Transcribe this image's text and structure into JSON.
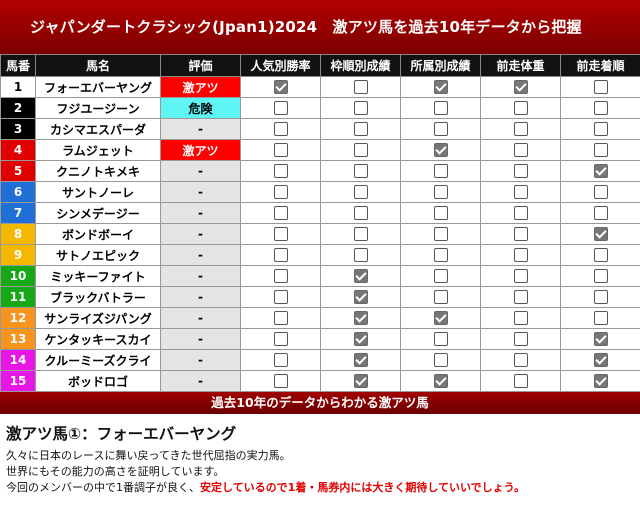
{
  "title": "ジャパンダートクラシック(Jpan1)2024　激アツ馬を過去10年データから把握",
  "columns": [
    "馬番",
    "馬名",
    "評価",
    "人気別勝率",
    "枠順別成績",
    "所属別成績",
    "前走体重",
    "前走着順"
  ],
  "rows": [
    {
      "num": "1",
      "name": "フォーエバーヤング",
      "rating": "激アツ",
      "rstyle": "hot",
      "numBg": "#ffffff",
      "numFg": "#000000",
      "checks": [
        true,
        false,
        true,
        true,
        false
      ]
    },
    {
      "num": "2",
      "name": "フジユージーン",
      "rating": "危険",
      "rstyle": "danger",
      "numBg": "#000000",
      "numFg": "#ffffff",
      "checks": [
        false,
        false,
        false,
        false,
        false
      ]
    },
    {
      "num": "3",
      "name": "カシマエスパーダ",
      "rating": "-",
      "rstyle": "",
      "numBg": "#000000",
      "numFg": "#ffffff",
      "checks": [
        false,
        false,
        false,
        false,
        false
      ]
    },
    {
      "num": "4",
      "name": "ラムジェット",
      "rating": "激アツ",
      "rstyle": "hot",
      "numBg": "#e00000",
      "numFg": "#ffffff",
      "checks": [
        false,
        false,
        true,
        false,
        false
      ]
    },
    {
      "num": "5",
      "name": "クニノトキメキ",
      "rating": "-",
      "rstyle": "",
      "numBg": "#e00000",
      "numFg": "#ffffff",
      "checks": [
        false,
        false,
        false,
        false,
        true
      ]
    },
    {
      "num": "6",
      "name": "サントノーレ",
      "rating": "-",
      "rstyle": "",
      "numBg": "#1f6fd6",
      "numFg": "#ffffff",
      "checks": [
        false,
        false,
        false,
        false,
        false
      ]
    },
    {
      "num": "7",
      "name": "シンメデージー",
      "rating": "-",
      "rstyle": "",
      "numBg": "#1f6fd6",
      "numFg": "#ffffff",
      "checks": [
        false,
        false,
        false,
        false,
        false
      ]
    },
    {
      "num": "8",
      "name": "ボンドボーイ",
      "rating": "-",
      "rstyle": "",
      "numBg": "#f5b800",
      "numFg": "#ffffff",
      "checks": [
        false,
        false,
        false,
        false,
        true
      ]
    },
    {
      "num": "9",
      "name": "サトノエピック",
      "rating": "-",
      "rstyle": "",
      "numBg": "#f5b800",
      "numFg": "#ffffff",
      "checks": [
        false,
        false,
        false,
        false,
        false
      ]
    },
    {
      "num": "10",
      "name": "ミッキーファイト",
      "rating": "-",
      "rstyle": "",
      "numBg": "#16a816",
      "numFg": "#ffffff",
      "checks": [
        false,
        true,
        false,
        false,
        false
      ]
    },
    {
      "num": "11",
      "name": "ブラックバトラー",
      "rating": "-",
      "rstyle": "",
      "numBg": "#16a816",
      "numFg": "#ffffff",
      "checks": [
        false,
        true,
        false,
        false,
        false
      ]
    },
    {
      "num": "12",
      "name": "サンライズジパング",
      "rating": "-",
      "rstyle": "",
      "numBg": "#f7941d",
      "numFg": "#ffffff",
      "checks": [
        false,
        true,
        true,
        false,
        false
      ]
    },
    {
      "num": "13",
      "name": "ケンタッキースカイ",
      "rating": "-",
      "rstyle": "",
      "numBg": "#f7941d",
      "numFg": "#ffffff",
      "checks": [
        false,
        true,
        false,
        false,
        true
      ]
    },
    {
      "num": "14",
      "name": "クルーミーズクライ",
      "rating": "-",
      "rstyle": "",
      "numBg": "#e617e6",
      "numFg": "#ffffff",
      "checks": [
        false,
        true,
        false,
        false,
        true
      ]
    },
    {
      "num": "15",
      "name": "ボッドロゴ",
      "rating": "-",
      "rstyle": "",
      "numBg": "#e617e6",
      "numFg": "#ffffff",
      "checks": [
        false,
        true,
        true,
        false,
        true
      ]
    }
  ],
  "banner": "過去10年のデータからわかる激アツ馬",
  "section": {
    "heading": "激アツ馬①：フォーエバーヤング",
    "line1": "久々に日本のレースに舞い戻ってきた世代屈指の実力馬。",
    "line2": "世界にもその能力の高さを証明しています。",
    "line3_plain": "今回のメンバーの中で1番調子が良く、",
    "line3_red": "安定しているので1着・馬券内には大きく期待していいでしょう。"
  }
}
